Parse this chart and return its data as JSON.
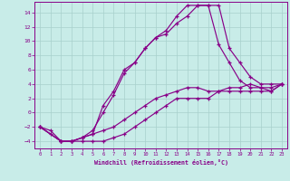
{
  "xlabel": "Windchill (Refroidissement éolien,°C)",
  "xlim": [
    -0.5,
    23.5
  ],
  "ylim": [
    -5.0,
    15.5
  ],
  "xticks": [
    0,
    1,
    2,
    3,
    4,
    5,
    6,
    7,
    8,
    9,
    10,
    11,
    12,
    13,
    14,
    15,
    16,
    17,
    18,
    19,
    20,
    21,
    22,
    23
  ],
  "yticks": [
    -4,
    -2,
    0,
    2,
    4,
    6,
    8,
    10,
    12,
    14
  ],
  "bg_color": "#c8ece8",
  "line_color": "#880088",
  "grid_color": "#a8d0cc",
  "line1_x": [
    0,
    1,
    2,
    3,
    4,
    5,
    6,
    7,
    8,
    9,
    10,
    11,
    12,
    13,
    14,
    15,
    16,
    17,
    18,
    19,
    20,
    21,
    22,
    23
  ],
  "line1_y": [
    -2,
    -3,
    -4,
    -4,
    -4,
    -4,
    -4,
    -3.5,
    -3,
    -2,
    -1,
    0,
    1,
    2,
    2,
    2,
    2,
    3,
    3,
    3,
    3,
    3,
    3,
    4
  ],
  "line2_x": [
    0,
    1,
    2,
    3,
    4,
    5,
    6,
    7,
    8,
    9,
    10,
    11,
    12,
    13,
    14,
    15,
    16,
    17,
    18,
    19,
    20,
    21,
    22,
    23
  ],
  "line2_y": [
    -2,
    -2.5,
    -4,
    -4,
    -3.5,
    -3,
    -2.5,
    -2,
    -1,
    0,
    1,
    2,
    2.5,
    3,
    3.5,
    3.5,
    3,
    3,
    3.5,
    3.5,
    4,
    3.5,
    3.5,
    4
  ],
  "line3_x": [
    0,
    2,
    3,
    4,
    5,
    6,
    7,
    8,
    9,
    10,
    11,
    12,
    13,
    14,
    15,
    16,
    17,
    18,
    19,
    20,
    21,
    22,
    23
  ],
  "line3_y": [
    -2,
    -4,
    -4,
    -3.5,
    -3,
    1,
    3,
    6,
    7,
    9,
    10.5,
    11,
    12.5,
    13.5,
    15,
    15,
    15,
    9,
    7,
    5,
    4,
    4,
    4
  ],
  "line4_x": [
    0,
    2,
    3,
    4,
    5,
    6,
    7,
    8,
    9,
    10,
    11,
    12,
    13,
    14,
    15,
    16,
    17,
    18,
    19,
    20,
    21,
    22,
    23
  ],
  "line4_y": [
    -2,
    -4,
    -4,
    -3.5,
    -2.5,
    0,
    2.5,
    5.5,
    7,
    9,
    10.5,
    11.5,
    13.5,
    15,
    15,
    15,
    9.5,
    7,
    4.5,
    3.5,
    3.5,
    3,
    4
  ]
}
